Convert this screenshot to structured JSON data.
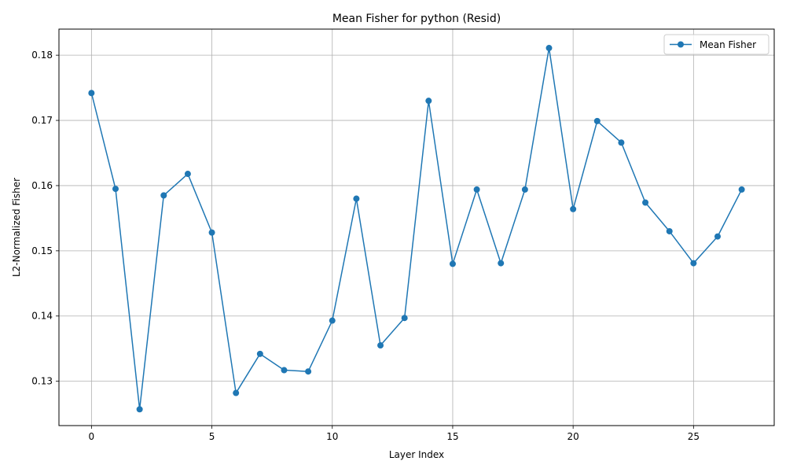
{
  "chart_data": {
    "type": "line",
    "title": "Mean Fisher for python (Resid)",
    "xlabel": "Layer Index",
    "ylabel": "L2-Normalized Fisher",
    "xlim": [
      -1.35,
      28.35
    ],
    "ylim": [
      0.1232,
      0.184
    ],
    "xticks": [
      0,
      5,
      10,
      15,
      20,
      25
    ],
    "yticks": [
      0.13,
      0.14,
      0.15,
      0.16,
      0.17,
      0.18
    ],
    "grid": true,
    "legend": "top-right",
    "series": [
      {
        "name": "Mean Fisher",
        "color": "#1f77b4",
        "marker": "circle",
        "x": [
          0,
          1,
          2,
          3,
          4,
          5,
          6,
          7,
          8,
          9,
          10,
          11,
          12,
          13,
          14,
          15,
          16,
          17,
          18,
          19,
          20,
          21,
          22,
          23,
          24,
          25,
          26,
          27
        ],
        "y": [
          0.1742,
          0.1595,
          0.1257,
          0.1585,
          0.1618,
          0.1528,
          0.1282,
          0.1342,
          0.1317,
          0.1315,
          0.1393,
          0.158,
          0.1355,
          0.1397,
          0.173,
          0.148,
          0.1594,
          0.1481,
          0.1594,
          0.1811,
          0.1564,
          0.1699,
          0.1666,
          0.1574,
          0.153,
          0.1481,
          0.1522,
          0.1594
        ]
      }
    ]
  }
}
